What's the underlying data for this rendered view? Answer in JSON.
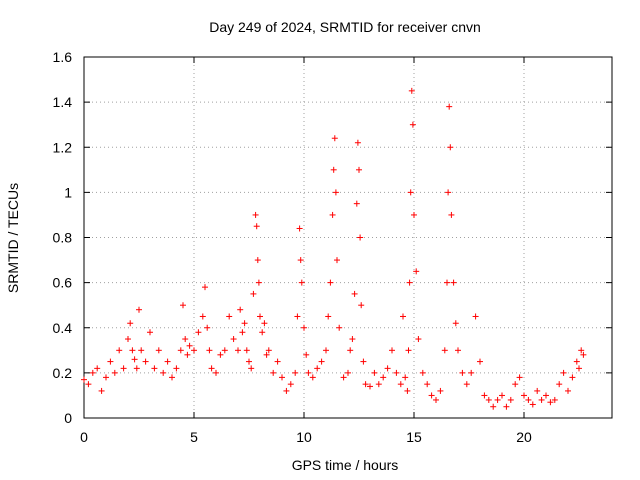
{
  "chart_data": {
    "type": "scatter",
    "title": "Day 249 of 2024, SRMTID for receiver cnvn",
    "xlabel": "GPS time / hours",
    "ylabel": "SRMTID / TECUs",
    "xlim": [
      0,
      24
    ],
    "ylim": [
      0,
      1.6
    ],
    "xticks": [
      0,
      5,
      10,
      15,
      20
    ],
    "yticks": [
      0,
      0.2,
      0.4,
      0.6,
      0.8,
      1,
      1.2,
      1.4,
      1.6
    ],
    "xtick_labels": [
      "0",
      "5",
      "10",
      "15",
      "20"
    ],
    "ytick_labels": [
      "0",
      "0.2",
      "0.4",
      "0.6",
      "0.8",
      "1",
      "1.2",
      "1.4",
      "1.6"
    ],
    "grid": true,
    "marker": "+",
    "color": "#ff0000",
    "series": [
      {
        "name": "SRMTID",
        "x": [
          0.0,
          0.2,
          0.4,
          0.6,
          0.8,
          1.0,
          1.2,
          1.4,
          1.6,
          1.8,
          2.0,
          2.1,
          2.2,
          2.3,
          2.4,
          2.5,
          2.6,
          2.8,
          3.0,
          3.2,
          3.4,
          3.6,
          3.8,
          4.0,
          4.2,
          4.4,
          4.5,
          4.6,
          4.7,
          4.8,
          5.0,
          5.2,
          5.4,
          5.5,
          5.6,
          5.7,
          5.8,
          6.0,
          6.2,
          6.4,
          6.6,
          6.8,
          7.0,
          7.1,
          7.2,
          7.3,
          7.4,
          7.5,
          7.6,
          7.7,
          7.8,
          7.85,
          7.9,
          7.95,
          8.0,
          8.1,
          8.2,
          8.3,
          8.4,
          8.6,
          8.8,
          9.0,
          9.2,
          9.4,
          9.6,
          9.7,
          9.8,
          9.85,
          9.9,
          10.0,
          10.1,
          10.2,
          10.4,
          10.6,
          10.8,
          11.0,
          11.1,
          11.2,
          11.3,
          11.35,
          11.4,
          11.45,
          11.5,
          11.6,
          11.8,
          12.0,
          12.1,
          12.2,
          12.3,
          12.4,
          12.45,
          12.5,
          12.55,
          12.6,
          12.7,
          12.8,
          13.0,
          13.2,
          13.4,
          13.6,
          13.8,
          14.0,
          14.2,
          14.4,
          14.5,
          14.6,
          14.7,
          14.75,
          14.8,
          14.85,
          14.9,
          14.95,
          15.0,
          15.1,
          15.2,
          15.4,
          15.6,
          15.8,
          16.0,
          16.2,
          16.4,
          16.5,
          16.55,
          16.6,
          16.65,
          16.7,
          16.8,
          16.9,
          17.0,
          17.2,
          17.4,
          17.6,
          17.8,
          18.0,
          18.2,
          18.4,
          18.6,
          18.8,
          19.0,
          19.2,
          19.4,
          19.6,
          19.8,
          20.0,
          20.2,
          20.4,
          20.6,
          20.8,
          21.0,
          21.2,
          21.4,
          21.6,
          21.8,
          22.0,
          22.2,
          22.4,
          22.5,
          22.6,
          22.7
        ],
        "y": [
          0.17,
          0.15,
          0.2,
          0.22,
          0.12,
          0.18,
          0.25,
          0.2,
          0.3,
          0.22,
          0.35,
          0.42,
          0.3,
          0.26,
          0.22,
          0.48,
          0.3,
          0.25,
          0.38,
          0.22,
          0.3,
          0.2,
          0.25,
          0.18,
          0.22,
          0.3,
          0.5,
          0.35,
          0.28,
          0.32,
          0.3,
          0.38,
          0.45,
          0.58,
          0.4,
          0.3,
          0.22,
          0.2,
          0.28,
          0.3,
          0.45,
          0.35,
          0.3,
          0.48,
          0.38,
          0.42,
          0.3,
          0.25,
          0.22,
          0.55,
          0.9,
          0.85,
          0.7,
          0.6,
          0.45,
          0.38,
          0.42,
          0.28,
          0.3,
          0.2,
          0.25,
          0.18,
          0.12,
          0.15,
          0.2,
          0.45,
          0.84,
          0.7,
          0.6,
          0.4,
          0.28,
          0.2,
          0.18,
          0.22,
          0.25,
          0.3,
          0.45,
          0.6,
          0.9,
          1.1,
          1.24,
          1.0,
          0.7,
          0.4,
          0.18,
          0.2,
          0.3,
          0.35,
          0.55,
          0.95,
          1.22,
          1.1,
          0.8,
          0.5,
          0.25,
          0.15,
          0.14,
          0.2,
          0.15,
          0.18,
          0.22,
          0.3,
          0.2,
          0.15,
          0.45,
          0.18,
          0.12,
          0.3,
          0.6,
          1.0,
          1.45,
          1.3,
          0.9,
          0.65,
          0.35,
          0.2,
          0.15,
          0.1,
          0.08,
          0.12,
          0.3,
          0.6,
          1.0,
          1.38,
          1.2,
          0.9,
          0.6,
          0.42,
          0.3,
          0.2,
          0.15,
          0.2,
          0.45,
          0.25,
          0.1,
          0.08,
          0.05,
          0.08,
          0.1,
          0.05,
          0.08,
          0.15,
          0.18,
          0.1,
          0.08,
          0.06,
          0.12,
          0.08,
          0.1,
          0.07,
          0.08,
          0.15,
          0.2,
          0.12,
          0.18,
          0.25,
          0.22,
          0.3,
          0.28
        ]
      }
    ]
  }
}
